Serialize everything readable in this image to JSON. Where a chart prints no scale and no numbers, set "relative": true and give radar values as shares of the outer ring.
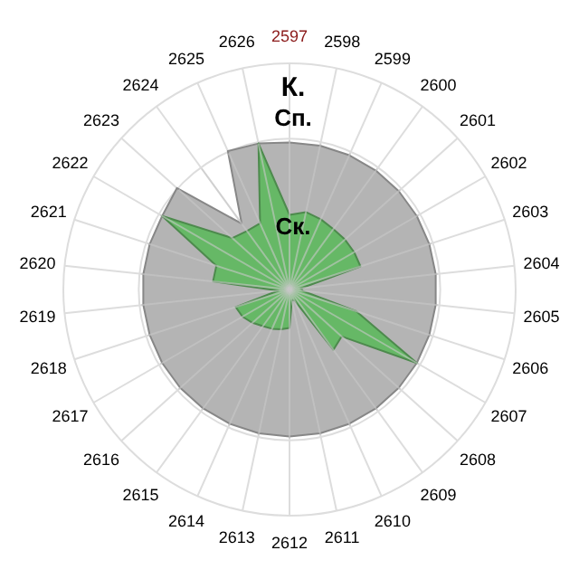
{
  "chart_data": {
    "type": "radar",
    "relative": true,
    "grid": true,
    "categories": [
      "2597",
      "2598",
      "2599",
      "2600",
      "2601",
      "2602",
      "2603",
      "2604",
      "2605",
      "2606",
      "2607",
      "2608",
      "2609",
      "2610",
      "2611",
      "2612",
      "2613",
      "2614",
      "2615",
      "2616",
      "2617",
      "2618",
      "2619",
      "2620",
      "2621",
      "2622",
      "2623",
      "2624",
      "2625",
      "2626"
    ],
    "series": [
      {
        "color": "#b4b4b4",
        "values": [
          0.65,
          0.65,
          0.65,
          0.65,
          0.65,
          0.65,
          0.65,
          0.65,
          0.65,
          0.65,
          0.65,
          0.65,
          0.65,
          0.65,
          0.65,
          0.65,
          0.65,
          0.65,
          0.65,
          0.65,
          0.65,
          0.65,
          0.65,
          0.65,
          0.65,
          0.65,
          0.67,
          0.36,
          0.67,
          0.66
        ]
      },
      {
        "color": "#66b866",
        "values": [
          0.33,
          0.35,
          0.34,
          0.33,
          0.33,
          0.33,
          0.33,
          0.05,
          0.06,
          0.31,
          0.65,
          0.31,
          0.33,
          0.05,
          0.05,
          0.17,
          0.18,
          0.19,
          0.2,
          0.22,
          0.24,
          0.25,
          0.05,
          0.34,
          0.34,
          0.65,
          0.34,
          0.32,
          0.32,
          0.66
        ]
      }
    ],
    "annotations": [
      "К.",
      "Сп.",
      "Ск."
    ]
  }
}
